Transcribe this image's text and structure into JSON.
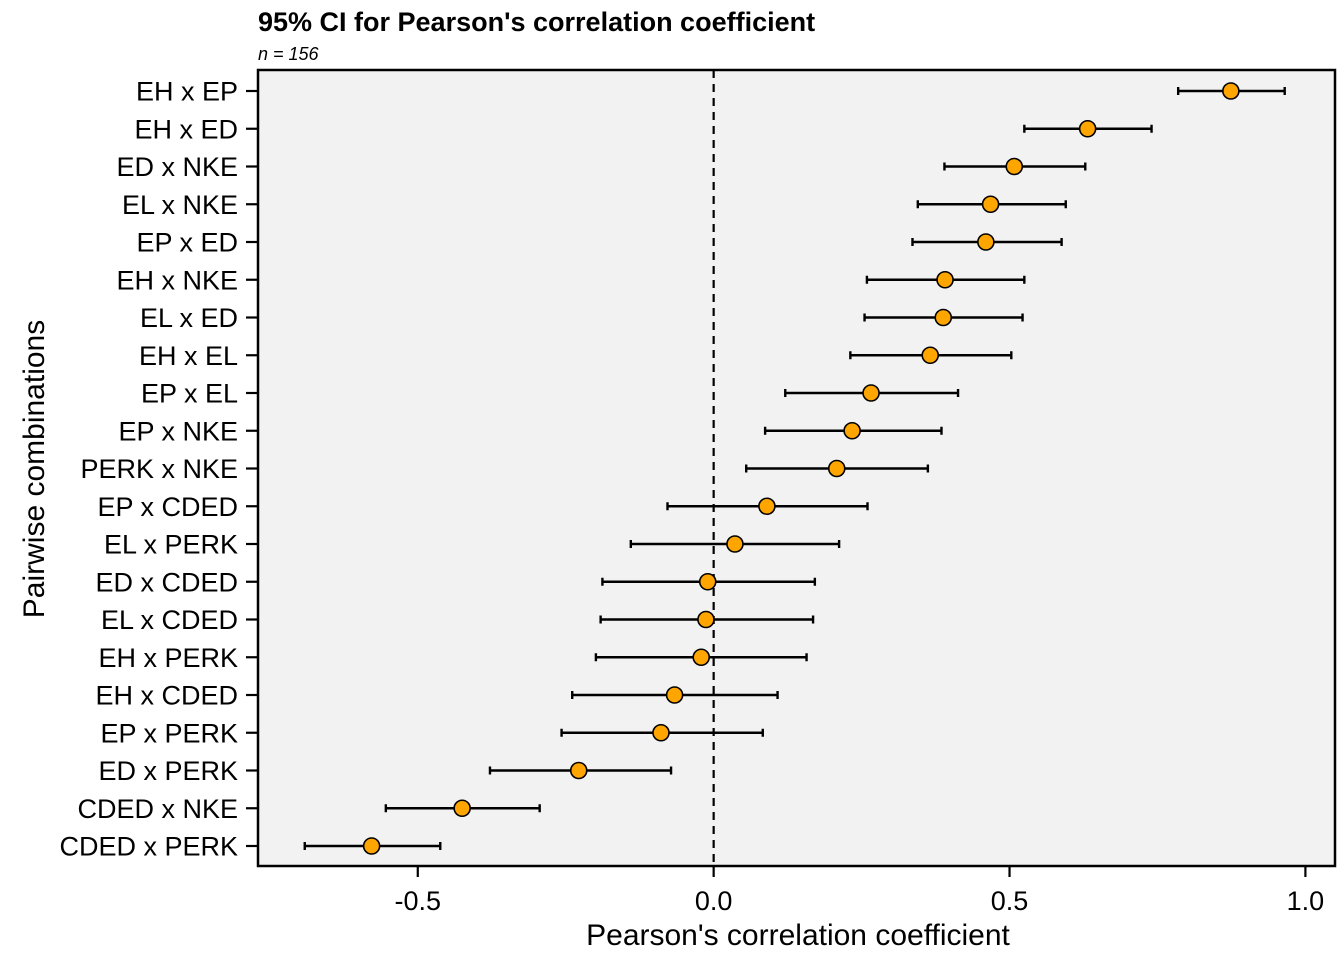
{
  "chart_data": {
    "type": "forest",
    "title": "95% CI for Pearson's correlation coefficient",
    "subtitle": "n =  156",
    "xlabel": "Pearson's correlation coefficient",
    "ylabel": "Pairwise combinations",
    "xlim": [
      -0.77,
      1.05
    ],
    "xticks": [
      -0.5,
      0.0,
      0.5,
      1.0
    ],
    "xtick_labels": [
      "-0.5",
      "0.0",
      "0.5",
      "1.0"
    ],
    "reference_line": 0.0,
    "point_color": "#FFA500",
    "panel_background": "#F2F2F2",
    "rows": [
      {
        "label": "EH x EP",
        "r": 0.874,
        "lower": 0.785,
        "upper": 0.965
      },
      {
        "label": "EH x ED",
        "r": 0.632,
        "lower": 0.525,
        "upper": 0.74
      },
      {
        "label": "ED x NKE",
        "r": 0.508,
        "lower": 0.39,
        "upper": 0.628
      },
      {
        "label": "EL x NKE",
        "r": 0.468,
        "lower": 0.345,
        "upper": 0.595
      },
      {
        "label": "EP x ED",
        "r": 0.46,
        "lower": 0.336,
        "upper": 0.588
      },
      {
        "label": "EH x NKE",
        "r": 0.391,
        "lower": 0.259,
        "upper": 0.525
      },
      {
        "label": "EL x ED",
        "r": 0.388,
        "lower": 0.255,
        "upper": 0.522
      },
      {
        "label": "EH x EL",
        "r": 0.366,
        "lower": 0.231,
        "upper": 0.503
      },
      {
        "label": "EP x EL",
        "r": 0.266,
        "lower": 0.121,
        "upper": 0.413
      },
      {
        "label": "EP x NKE",
        "r": 0.234,
        "lower": 0.087,
        "upper": 0.385
      },
      {
        "label": "PERK x NKE",
        "r": 0.208,
        "lower": 0.055,
        "upper": 0.362
      },
      {
        "label": "EP x CDED",
        "r": 0.09,
        "lower": -0.078,
        "upper": 0.26
      },
      {
        "label": "EL x PERK",
        "r": 0.036,
        "lower": -0.14,
        "upper": 0.212
      },
      {
        "label": "ED x CDED",
        "r": -0.01,
        "lower": -0.188,
        "upper": 0.171
      },
      {
        "label": "EL x CDED",
        "r": -0.013,
        "lower": -0.191,
        "upper": 0.168
      },
      {
        "label": "EH x PERK",
        "r": -0.021,
        "lower": -0.199,
        "upper": 0.157
      },
      {
        "label": "EH x CDED",
        "r": -0.066,
        "lower": -0.239,
        "upper": 0.108
      },
      {
        "label": "EP x PERK",
        "r": -0.089,
        "lower": -0.257,
        "upper": 0.083
      },
      {
        "label": "ED x PERK",
        "r": -0.228,
        "lower": -0.378,
        "upper": -0.072
      },
      {
        "label": "CDED x NKE",
        "r": -0.425,
        "lower": -0.554,
        "upper": -0.294
      },
      {
        "label": "CDED x PERK",
        "r": -0.578,
        "lower": -0.691,
        "upper": -0.462
      }
    ]
  }
}
